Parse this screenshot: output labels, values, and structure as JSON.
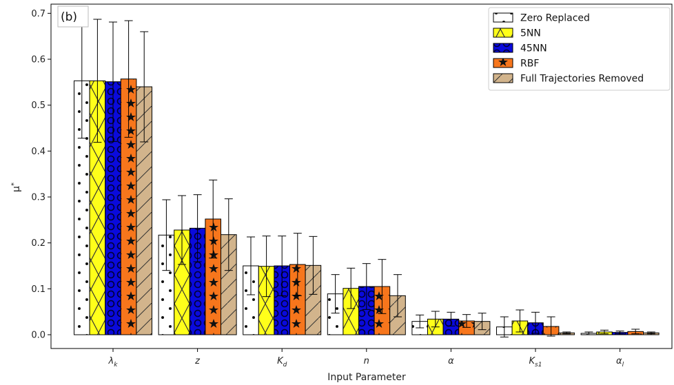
{
  "chart_data": {
    "type": "bar",
    "panel_label": "(b)",
    "xlabel": "Input Parameter",
    "ylabel": "μ*",
    "ylim": [
      -0.03,
      0.72
    ],
    "yticks": [
      "0.0",
      "0.1",
      "0.2",
      "0.3",
      "0.4",
      "0.5",
      "0.6",
      "0.7"
    ],
    "ytick_values": [
      0.0,
      0.1,
      0.2,
      0.3,
      0.4,
      0.5,
      0.6,
      0.7
    ],
    "categories": [
      {
        "main": "λ",
        "sub": "k"
      },
      {
        "main": "z",
        "sub": ""
      },
      {
        "main": "K",
        "sub": "d"
      },
      {
        "main": "n",
        "sub": ""
      },
      {
        "main": "α",
        "sub": ""
      },
      {
        "main": "K",
        "sub": "s1"
      },
      {
        "main": "α",
        "sub": "l"
      }
    ],
    "legend_position": "top-right",
    "grid": false,
    "series": [
      {
        "name": "Zero Replaced",
        "color": "#ffffff",
        "hatch": "dots",
        "values": [
          0.553,
          0.217,
          0.15,
          0.089,
          0.029,
          0.017,
          0.003
        ],
        "errors": [
          0.125,
          0.077,
          0.063,
          0.042,
          0.014,
          0.022,
          0.003
        ]
      },
      {
        "name": "5NN",
        "color": "#ffff1a",
        "hatch": "cross",
        "values": [
          0.553,
          0.228,
          0.149,
          0.101,
          0.034,
          0.03,
          0.006
        ],
        "errors": [
          0.134,
          0.075,
          0.066,
          0.044,
          0.017,
          0.024,
          0.004
        ]
      },
      {
        "name": "45NN",
        "color": "#0a0adc",
        "hatch": "circles",
        "values": [
          0.551,
          0.232,
          0.15,
          0.105,
          0.034,
          0.026,
          0.005
        ],
        "errors": [
          0.13,
          0.073,
          0.065,
          0.05,
          0.015,
          0.023,
          0.003
        ]
      },
      {
        "name": "RBF",
        "color": "#f7761c",
        "hatch": "stars",
        "values": [
          0.557,
          0.252,
          0.153,
          0.105,
          0.03,
          0.018,
          0.007
        ],
        "errors": [
          0.127,
          0.085,
          0.068,
          0.059,
          0.014,
          0.021,
          0.005
        ]
      },
      {
        "name": "Full Trajectories Removed",
        "color": "#d2b48c",
        "hatch": "diag",
        "values": [
          0.54,
          0.218,
          0.151,
          0.085,
          0.029,
          0.004,
          0.004
        ],
        "errors": [
          0.12,
          0.078,
          0.063,
          0.046,
          0.018,
          0.002,
          0.002
        ]
      }
    ]
  }
}
